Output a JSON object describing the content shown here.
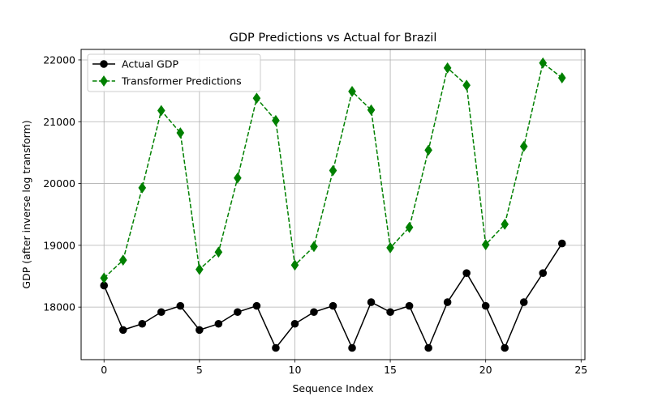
{
  "chart_data": {
    "type": "line",
    "title": "GDP Predictions vs Actual for Brazil",
    "xlabel": "Sequence Index",
    "ylabel": "GDP (after inverse log transform)",
    "xlim": [
      -1.2,
      25.2
    ],
    "ylim": [
      17150,
      22170
    ],
    "x_ticks": [
      0,
      5,
      10,
      15,
      20,
      25
    ],
    "y_ticks": [
      18000,
      19000,
      20000,
      21000,
      22000
    ],
    "grid": true,
    "legend_position": "upper-left",
    "x": [
      0,
      1,
      2,
      3,
      4,
      5,
      6,
      7,
      8,
      9,
      10,
      11,
      12,
      13,
      14,
      15,
      16,
      17,
      18,
      19,
      20,
      21,
      22,
      23,
      24
    ],
    "series": [
      {
        "name": "Actual GDP",
        "color": "#000000",
        "line_style": "solid",
        "marker": "circle",
        "values": [
          18350,
          17630,
          17730,
          17920,
          18020,
          17630,
          17730,
          17920,
          18020,
          17340,
          17730,
          17920,
          18020,
          17340,
          18080,
          17920,
          18020,
          17340,
          18080,
          18550,
          18020,
          17340,
          18080,
          18550,
          19030
        ]
      },
      {
        "name": "Transformer Predictions",
        "color": "#008000",
        "line_style": "dashed",
        "marker": "diamond",
        "values": [
          18470,
          18760,
          19930,
          21180,
          20820,
          18610,
          18890,
          20090,
          21380,
          21020,
          18680,
          18980,
          20210,
          21490,
          21190,
          18960,
          19290,
          20540,
          21870,
          21590,
          19010,
          19340,
          20600,
          21950,
          21710
        ]
      }
    ]
  }
}
